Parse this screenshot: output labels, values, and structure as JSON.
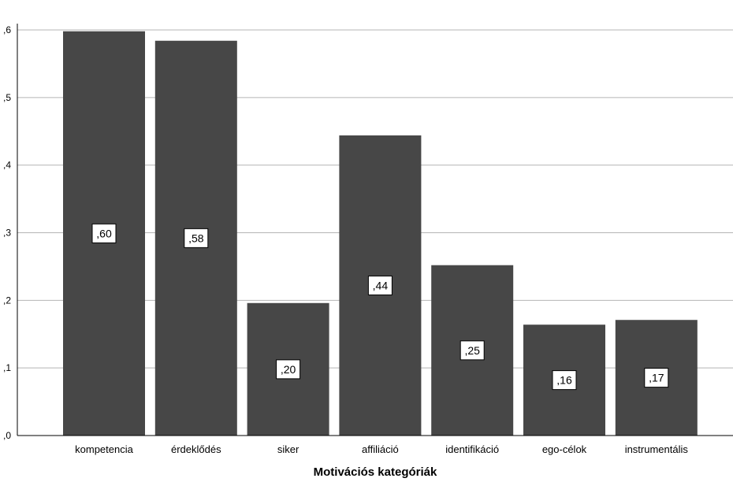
{
  "chart_data": {
    "type": "bar",
    "title": "",
    "xlabel": "Motivációs kategóriák",
    "ylabel": "",
    "categories": [
      "kompetencia",
      "érdeklődés",
      "siker",
      "affiliáció",
      "identifikáció",
      "ego-célok",
      "instrumentális"
    ],
    "values": [
      0.598,
      0.584,
      0.196,
      0.444,
      0.252,
      0.164,
      0.171
    ],
    "data_labels": [
      ",60",
      ",58",
      ",20",
      ",44",
      ",25",
      ",16",
      ",17"
    ],
    "ylim": [
      0,
      0.6
    ],
    "yticks": [
      0,
      0.1,
      0.2,
      0.3,
      0.4,
      0.5,
      0.6
    ],
    "ytick_labels": [
      ",0",
      ",1",
      ",2",
      ",3",
      ",4",
      ",5",
      ",6"
    ],
    "grid": true,
    "colors": {
      "bar": "#474747",
      "grid": "#b4b4b4",
      "axis": "#000000",
      "label_box": "#ffffff"
    }
  }
}
